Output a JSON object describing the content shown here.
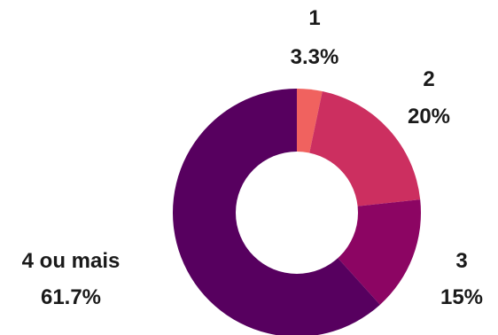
{
  "chart_data": {
    "type": "pie",
    "variant": "donut",
    "title": "",
    "categories": [
      "1",
      "2",
      "3",
      "4 ou mais"
    ],
    "values": [
      3.3,
      20,
      15,
      61.7
    ],
    "value_labels": [
      "3.3%",
      "20%",
      "15%",
      "61.7%"
    ],
    "colors": [
      "#f0625f",
      "#cc2f60",
      "#8c0563",
      "#57005f"
    ],
    "start_angle_deg": 0,
    "direction": "clockwise",
    "legend": "none",
    "labels_position": "outside"
  }
}
